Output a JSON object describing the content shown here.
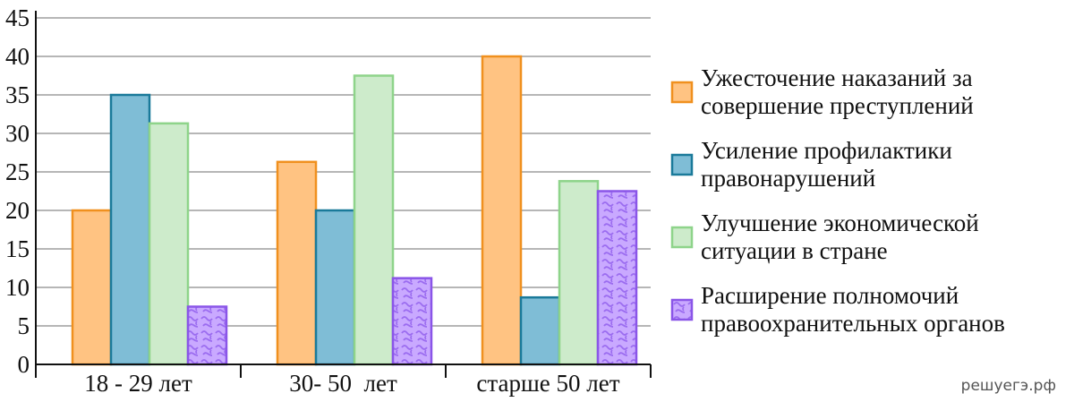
{
  "chart_data": {
    "type": "bar",
    "categories": [
      "18 - 29 лет",
      "30- 50  лет",
      "старше 50 лет"
    ],
    "series": [
      {
        "name": "Ужесточение наказаний за совершение преступлений",
        "legend_lines": [
          "Ужесточение наказаний за",
          "совершение преступлений"
        ],
        "values": [
          20,
          26.3,
          40
        ],
        "fill": "#ffc382",
        "stroke": "#f0901e",
        "pattern": "none"
      },
      {
        "name": "Усиление профилактики правонарушений",
        "legend_lines": [
          "Усиление профилактики",
          "правонарушений"
        ],
        "values": [
          35,
          20,
          8.7
        ],
        "fill": "#7fbdd6",
        "stroke": "#1a7a9a",
        "pattern": "none"
      },
      {
        "name": "Улучшение экономической ситуации в стране",
        "legend_lines": [
          "Улучшение экономической",
          "ситуации в стране"
        ],
        "values": [
          31.3,
          37.5,
          23.8
        ],
        "fill": "#cdebcb",
        "stroke": "#8ed48a",
        "pattern": "none"
      },
      {
        "name": "Расширение полномочий правоохранительных органов",
        "legend_lines": [
          "Расширение полномочий",
          "правоохранительных органов"
        ],
        "values": [
          7.5,
          11.2,
          22.5
        ],
        "fill": "#c9a9ff",
        "stroke": "#8a55e8",
        "pattern": "squiggle"
      }
    ],
    "yticks": [
      0,
      5,
      10,
      15,
      20,
      25,
      30,
      35,
      40,
      45
    ],
    "ylim": [
      0,
      45
    ],
    "grid": true,
    "legend_position": "right",
    "title": "",
    "xlabel": "",
    "ylabel": ""
  },
  "watermark": "решуегэ.рф"
}
